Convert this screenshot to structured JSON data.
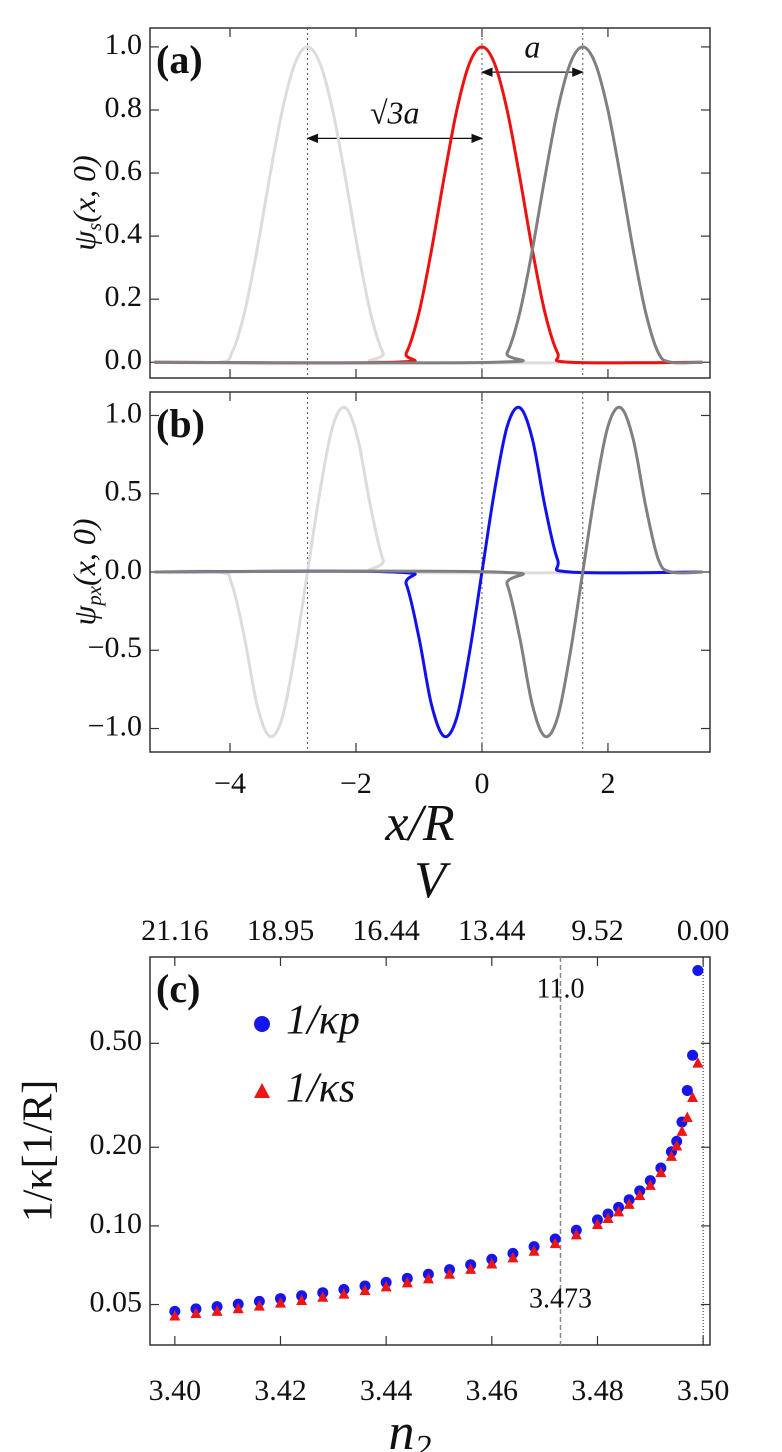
{
  "chart_data": [
    {
      "type": "line",
      "label": "(a)",
      "ylabel": {
        "symbol": "ψ",
        "subscript": "s",
        "args": "(x, 0)"
      },
      "xlim": [
        -5.27,
        3.62
      ],
      "ylim": [
        -0.05,
        1.06
      ],
      "xticks": [
        -4,
        -2,
        0,
        2
      ],
      "xtick_labels": false,
      "yticks": [
        {
          "value": 0,
          "label": "0.0"
        },
        {
          "value": 0.2,
          "label": "0.2"
        },
        {
          "value": 0.4,
          "label": "0.4"
        },
        {
          "value": 0.6,
          "label": "0.6"
        },
        {
          "value": 0.8,
          "label": "0.8"
        },
        {
          "value": 1,
          "label": "1.0"
        }
      ],
      "vlines": [
        -2.77,
        0,
        1.6
      ],
      "annotations": [
        {
          "text": "√3a",
          "from": -2.77,
          "to": 0,
          "y": 0.71
        },
        {
          "text": "a",
          "from": 0,
          "to": 1.6,
          "y": 0.92
        }
      ],
      "series": [
        {
          "color": "#dcdcdc",
          "x": [
            -5.2,
            -4.17,
            -3.97,
            -3.77,
            -3.57,
            -3.37,
            -3.17,
            -2.97,
            -2.77,
            -2.57,
            -2.37,
            -2.17,
            -1.97,
            -1.77,
            -1.57,
            -1.37,
            3.5
          ],
          "values": [
            0,
            0,
            0.03,
            0.157,
            0.357,
            0.587,
            0.799,
            0.947,
            1,
            0.947,
            0.799,
            0.587,
            0.357,
            0.157,
            0.03,
            0,
            0
          ]
        },
        {
          "color": "#ee1111",
          "x": [
            -5.2,
            -1.4,
            -1.2,
            -1.0,
            -0.8,
            -0.6,
            -0.4,
            -0.2,
            0,
            0.2,
            0.4,
            0.6,
            0.8,
            1.0,
            1.2,
            1.4,
            3.5
          ],
          "values": [
            0,
            0,
            0.03,
            0.157,
            0.357,
            0.587,
            0.799,
            0.947,
            1,
            0.947,
            0.799,
            0.587,
            0.357,
            0.157,
            0.03,
            0,
            0
          ]
        },
        {
          "color": "#808080",
          "x": [
            -5.2,
            0.2,
            0.4,
            0.6,
            0.8,
            1.0,
            1.2,
            1.4,
            1.6,
            1.8,
            2.0,
            2.2,
            2.4,
            2.6,
            2.8,
            3.0,
            3.5
          ],
          "values": [
            0,
            0,
            0.03,
            0.157,
            0.357,
            0.587,
            0.799,
            0.947,
            1,
            0.947,
            0.799,
            0.587,
            0.357,
            0.157,
            0.03,
            0,
            0
          ]
        }
      ]
    },
    {
      "type": "line",
      "label": "(b)",
      "ylabel": {
        "symbol": "ψ",
        "subscript": "px",
        "args": "(x, 0)"
      },
      "xlabel": "x/R",
      "xlim": [
        -5.27,
        3.62
      ],
      "ylim": [
        -1.15,
        1.15
      ],
      "xticks": [
        {
          "value": -4,
          "label": "−4"
        },
        {
          "value": -2,
          "label": "−2"
        },
        0,
        2
      ],
      "xtick_labels": true,
      "yticks": [
        {
          "value": -1,
          "label": "−1.0"
        },
        {
          "value": -0.5,
          "label": "−0.5"
        },
        {
          "value": 0,
          "label": "0.0"
        },
        0.5,
        {
          "value": 1,
          "label": "1.0"
        }
      ],
      "vlines": [
        -2.77,
        0,
        1.6
      ],
      "series": [
        {
          "color": "#dcdcdc",
          "x": [
            -5.2,
            -4.17,
            -3.97,
            -3.77,
            -3.57,
            -3.37,
            -3.17,
            -2.97,
            -2.77,
            -2.57,
            -2.37,
            -2.17,
            -1.97,
            -1.77,
            -1.57,
            -1.37,
            3.5
          ],
          "values": [
            0,
            0,
            -0.08,
            -0.42,
            -0.85,
            -1.05,
            -0.93,
            -0.52,
            0,
            0.52,
            0.93,
            1.05,
            0.85,
            0.42,
            0.08,
            0,
            0
          ]
        },
        {
          "color": "#1111ee",
          "x": [
            -5.2,
            -1.4,
            -1.2,
            -1.0,
            -0.8,
            -0.6,
            -0.4,
            -0.2,
            0,
            0.2,
            0.4,
            0.6,
            0.8,
            1.0,
            1.2,
            1.4,
            3.5
          ],
          "values": [
            0,
            0,
            -0.08,
            -0.42,
            -0.85,
            -1.05,
            -0.93,
            -0.52,
            0,
            0.52,
            0.93,
            1.05,
            0.85,
            0.42,
            0.08,
            0,
            0
          ]
        },
        {
          "color": "#808080",
          "x": [
            -5.2,
            0.2,
            0.4,
            0.6,
            0.8,
            1.0,
            1.2,
            1.4,
            1.6,
            1.8,
            2.0,
            2.2,
            2.4,
            2.6,
            2.8,
            3.0,
            3.5
          ],
          "values": [
            0,
            0,
            -0.08,
            -0.42,
            -0.85,
            -1.05,
            -0.93,
            -0.52,
            0,
            0.52,
            0.93,
            1.05,
            0.85,
            0.42,
            0.08,
            0,
            0
          ]
        }
      ]
    },
    {
      "type": "scatter",
      "label": "(c)",
      "yscale": "log",
      "ylabel": "1/κ[1/R]",
      "xlabel": {
        "symbol": "n",
        "subscript": "2"
      },
      "x2label": "V",
      "xlim": [
        3.3953,
        3.5013
      ],
      "ylim": [
        0.035,
        1.07
      ],
      "xticks": [
        {
          "value": 3.4,
          "label": "3.40"
        },
        {
          "value": 3.42,
          "label": "3.42"
        },
        {
          "value": 3.44,
          "label": "3.44"
        },
        {
          "value": 3.46,
          "label": "3.46"
        },
        {
          "value": 3.48,
          "label": "3.48"
        },
        {
          "value": 3.5,
          "label": "3.50"
        }
      ],
      "x2ticks": [
        {
          "value": 3.4,
          "label": "21.16"
        },
        {
          "value": 3.42,
          "label": "18.95"
        },
        {
          "value": 3.44,
          "label": "16.44"
        },
        {
          "value": 3.46,
          "label": "13.44"
        },
        {
          "value": 3.48,
          "label": "9.52"
        },
        {
          "value": 3.5,
          "label": "0.00"
        }
      ],
      "yticks": [
        {
          "value": 0.05,
          "label": "0.05"
        },
        {
          "value": 0.1,
          "label": "0.10"
        },
        {
          "value": 0.2,
          "label": "0.20"
        },
        {
          "value": 0.5,
          "label": "0.50"
        }
      ],
      "highlight": {
        "x": 3.473,
        "V_label": "11.0"
      },
      "limit_line": 3.5,
      "x": [
        3.4,
        3.404,
        3.408,
        3.412,
        3.416,
        3.42,
        3.424,
        3.428,
        3.432,
        3.436,
        3.44,
        3.444,
        3.448,
        3.452,
        3.456,
        3.46,
        3.464,
        3.468,
        3.472,
        3.476,
        3.48,
        3.482,
        3.484,
        3.486,
        3.488,
        3.49,
        3.492,
        3.494,
        3.495,
        3.496,
        3.497,
        3.498,
        3.499
      ],
      "series": [
        {
          "name": "1/κp",
          "color": "#1515ee",
          "marker": "circle",
          "values": [
            0.0471,
            0.0481,
            0.0491,
            0.0502,
            0.0514,
            0.0527,
            0.054,
            0.0555,
            0.0571,
            0.0589,
            0.0608,
            0.063,
            0.0653,
            0.068,
            0.071,
            0.0745,
            0.0785,
            0.0833,
            0.0891,
            0.0962,
            0.1054,
            0.1111,
            0.1178,
            0.1259,
            0.1361,
            0.149,
            0.1666,
            0.1923,
            0.2107,
            0.25,
            0.33,
            0.45,
            0.95
          ]
        },
        {
          "name": "1/κs",
          "color": "#ee1515",
          "marker": "triangle",
          "values": [
            0.0452,
            0.0462,
            0.0471,
            0.0482,
            0.0493,
            0.0506,
            0.0518,
            0.0533,
            0.0548,
            0.0565,
            0.0584,
            0.0605,
            0.0627,
            0.0653,
            0.0682,
            0.0715,
            0.0754,
            0.08,
            0.0855,
            0.0924,
            0.1012,
            0.1067,
            0.1131,
            0.1209,
            0.1307,
            0.143,
            0.16,
            0.1846,
            0.2023,
            0.23,
            0.26,
            0.31,
            0.42
          ]
        }
      ]
    }
  ]
}
